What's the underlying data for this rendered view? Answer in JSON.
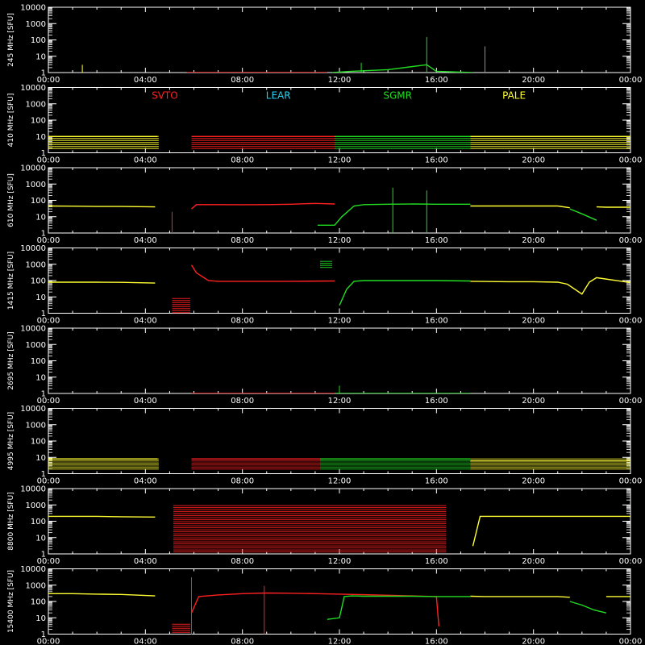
{
  "colors": {
    "background": "#000000",
    "axes": "#ffffff",
    "SVTO": "#ff2020",
    "LEAR": "#22d3ee",
    "SGMR": "#22dd22",
    "PALE": "#ffff33"
  },
  "chart_data": {
    "type": "line",
    "y_scale": "log",
    "y_unit": "[SFU]",
    "y_ticks": [
      "1",
      "10",
      "100",
      "1000",
      "10000"
    ],
    "x_ticks": [
      "00:00",
      "04:00",
      "08:00",
      "12:00",
      "16:00",
      "20:00",
      "00:00"
    ],
    "x_range": [
      "00:00",
      "24:00"
    ],
    "legend": [
      {
        "name": "SVTO",
        "color": "#ff2020"
      },
      {
        "name": "LEAR",
        "color": "#22d3ee"
      },
      {
        "name": "SGMR",
        "color": "#22dd22"
      },
      {
        "name": "PALE",
        "color": "#ffff33"
      }
    ],
    "panels": [
      {
        "ylabel": "245 MHz",
        "series": [
          {
            "name": "SVTO",
            "x": [
              5.7,
              8,
              10,
              11.5
            ],
            "y": [
              1,
              1,
              1,
              1
            ]
          },
          {
            "name": "SGMR",
            "x": [
              11.7,
              12.5,
              14,
              15.6,
              16,
              17.5
            ],
            "y": [
              1,
              1.2,
              1.5,
              3,
              1.2,
              1
            ]
          }
        ],
        "spikes": [
          {
            "name": "SGMR",
            "x": 15.6,
            "y": 150
          },
          {
            "name": "SGMR",
            "x": 18.0,
            "y": 40
          },
          {
            "name": "SGMR",
            "x": 12.9,
            "y": 4
          },
          {
            "name": "PALE",
            "x": 1.4,
            "y": 3
          }
        ]
      },
      {
        "ylabel": "410 MHz",
        "series": [
          {
            "name": "PALE",
            "x": [
              0,
              1,
              2,
              3,
              4.5
            ],
            "y": [
              10,
              10,
              10,
              10,
              10
            ]
          },
          {
            "name": "SVTO",
            "x": [
              5.9,
              8,
              10,
              11.8
            ],
            "y": [
              10,
              10,
              10,
              10
            ]
          },
          {
            "name": "SGMR",
            "x": [
              11.8,
              14,
              16,
              17.4
            ],
            "y": [
              10,
              10,
              10,
              10
            ]
          },
          {
            "name": "PALE",
            "x": [
              17.4,
              20,
              22,
              24
            ],
            "y": [
              10,
              10,
              10,
              10
            ]
          }
        ],
        "bands": [
          {
            "name": "PALE",
            "x0": 0,
            "x1": 4.55,
            "ymin": 1.5,
            "ymax": 10
          },
          {
            "name": "SVTO",
            "x0": 5.9,
            "x1": 11.8,
            "ymin": 1.5,
            "ymax": 10
          },
          {
            "name": "SGMR",
            "x0": 11.8,
            "x1": 17.4,
            "ymin": 1.5,
            "ymax": 10
          },
          {
            "name": "PALE",
            "x0": 17.4,
            "x1": 24,
            "ymin": 1.5,
            "ymax": 10
          }
        ]
      },
      {
        "ylabel": "610 MHz",
        "series": [
          {
            "name": "PALE",
            "x": [
              0,
              1,
              2,
              3,
              4.4
            ],
            "y": [
              45,
              44,
              42,
              42,
              40
            ]
          },
          {
            "name": "SVTO",
            "x": [
              5.9,
              6.1,
              7,
              8,
              9,
              10,
              11,
              11.8
            ],
            "y": [
              30,
              55,
              55,
              54,
              55,
              58,
              65,
              60
            ]
          },
          {
            "name": "SGMR",
            "x": [
              11.1,
              11.8,
              12.1,
              12.6,
              13,
              14,
              15,
              16,
              17.4
            ],
            "y": [
              3,
              3,
              10,
              45,
              55,
              58,
              60,
              58,
              58
            ]
          },
          {
            "name": "PALE",
            "x": [
              17.4,
              18,
              19,
              20,
              21,
              21.5
            ],
            "y": [
              45,
              45,
              45,
              45,
              45,
              35
            ]
          },
          {
            "name": "SGMR",
            "x": [
              21.5,
              22,
              22.6
            ],
            "y": [
              30,
              15,
              6
            ]
          },
          {
            "name": "PALE",
            "x": [
              22.6,
              23,
              24
            ],
            "y": [
              40,
              38,
              38
            ]
          }
        ],
        "spikes": [
          {
            "name": "SGMR",
            "x": 14.2,
            "y": 600
          },
          {
            "name": "SGMR",
            "x": 15.6,
            "y": 400
          },
          {
            "name": "SVTO",
            "x": 5.1,
            "y": 20
          }
        ]
      },
      {
        "ylabel": "1415 MHz",
        "series": [
          {
            "name": "PALE",
            "x": [
              0,
              1,
              2,
              3,
              4.4
            ],
            "y": [
              80,
              80,
              80,
              78,
              70
            ]
          },
          {
            "name": "SVTO",
            "x": [
              5.9,
              6.1,
              6.6,
              7,
              8,
              10,
              11.8
            ],
            "y": [
              900,
              300,
              100,
              90,
              90,
              90,
              95
            ]
          },
          {
            "name": "SGMR",
            "x": [
              12.0,
              12.3,
              12.6,
              13,
              14,
              16,
              17.4
            ],
            "y": [
              3,
              30,
              90,
              100,
              100,
              100,
              95
            ]
          },
          {
            "name": "PALE",
            "x": [
              17.4,
              19,
              20,
              21,
              21.4,
              22,
              22.3,
              22.6,
              24
            ],
            "y": [
              90,
              85,
              85,
              80,
              60,
              15,
              80,
              150,
              75
            ]
          }
        ],
        "bands": [
          {
            "name": "SVTO",
            "x0": 5.1,
            "x1": 5.85,
            "ymin": 1,
            "ymax": 8
          },
          {
            "name": "SGMR",
            "x0": 11.2,
            "x1": 11.7,
            "ymin": 600,
            "ymax": 1500
          }
        ]
      },
      {
        "ylabel": "2695 MHz",
        "series": [
          {
            "name": "SVTO",
            "x": [
              5.9,
              8,
              10,
              11.8
            ],
            "y": [
              1,
              1,
              1,
              1
            ]
          },
          {
            "name": "SGMR",
            "x": [
              11.8,
              14,
              16,
              17.4
            ],
            "y": [
              1,
              1,
              1,
              1
            ]
          }
        ],
        "spikes": [
          {
            "name": "SGMR",
            "x": 12.0,
            "y": 3
          }
        ]
      },
      {
        "ylabel": "4995 MHz",
        "series": [
          {
            "name": "PALE",
            "x": [
              0,
              2,
              4.5
            ],
            "y": [
              8,
              8,
              8
            ]
          },
          {
            "name": "SVTO",
            "x": [
              5.9,
              8,
              10,
              11.2
            ],
            "y": [
              8,
              8,
              8,
              8
            ]
          },
          {
            "name": "SGMR",
            "x": [
              11.2,
              14,
              16,
              17.4
            ],
            "y": [
              8,
              8,
              8,
              8
            ]
          },
          {
            "name": "PALE",
            "x": [
              17.4,
              20,
              24
            ],
            "y": [
              6,
              6,
              6
            ]
          }
        ],
        "bands": [
          {
            "name": "PALE",
            "x0": 0,
            "x1": 4.55,
            "ymin": 1.5,
            "ymax": 8
          },
          {
            "name": "SVTO",
            "x0": 5.9,
            "x1": 11.2,
            "ymin": 1.5,
            "ymax": 8
          },
          {
            "name": "SGMR",
            "x0": 11.2,
            "x1": 17.4,
            "ymin": 1.5,
            "ymax": 8
          },
          {
            "name": "PALE",
            "x0": 17.4,
            "x1": 24,
            "ymin": 1.5,
            "ymax": 8
          }
        ]
      },
      {
        "ylabel": "8800 MHz",
        "series": [
          {
            "name": "PALE",
            "x": [
              0,
              1,
              2,
              3,
              4.4
            ],
            "y": [
              200,
              200,
              200,
              190,
              180
            ]
          },
          {
            "name": "PALE",
            "x": [
              17.5,
              17.8,
              19,
              20,
              21,
              22,
              24
            ],
            "y": [
              3,
              200,
              200,
              200,
              200,
              200,
              200
            ]
          }
        ],
        "bands": [
          {
            "name": "SVTO",
            "x0": 5.15,
            "x1": 16.4,
            "ymin": 1,
            "ymax": 900
          }
        ]
      },
      {
        "ylabel": "15400 MHz",
        "series": [
          {
            "name": "PALE",
            "x": [
              0,
              1,
              2,
              3,
              4.4
            ],
            "y": [
              300,
              300,
              280,
              270,
              220
            ]
          },
          {
            "name": "SVTO",
            "x": [
              5.9,
              6.2,
              7,
              8,
              9,
              10,
              11,
              12,
              13,
              14,
              15,
              16,
              16.1
            ],
            "y": [
              20,
              200,
              250,
              300,
              330,
              320,
              300,
              280,
              260,
              240,
              220,
              200,
              3
            ]
          },
          {
            "name": "SGMR",
            "x": [
              11.5,
              12.0,
              12.2,
              12.5,
              13,
              14,
              15,
              16,
              17.4
            ],
            "y": [
              8,
              10,
              200,
              220,
              210,
              210,
              210,
              200,
              200
            ]
          },
          {
            "name": "PALE",
            "x": [
              17.4,
              18,
              19,
              20,
              21,
              21.5
            ],
            "y": [
              210,
              200,
              200,
              200,
              200,
              180
            ]
          },
          {
            "name": "SGMR",
            "x": [
              21.5,
              22,
              22.5,
              23
            ],
            "y": [
              100,
              60,
              30,
              20
            ]
          },
          {
            "name": "PALE",
            "x": [
              23,
              23.5,
              24
            ],
            "y": [
              200,
              200,
              200
            ]
          }
        ],
        "bands": [
          {
            "name": "SVTO",
            "x0": 5.1,
            "x1": 5.85,
            "ymin": 1.2,
            "ymax": 4
          }
        ],
        "spikes": [
          {
            "name": "SVTO",
            "x": 8.9,
            "y": 900
          },
          {
            "name": "SVTO",
            "x": 5.9,
            "y": 3000
          }
        ]
      }
    ]
  }
}
